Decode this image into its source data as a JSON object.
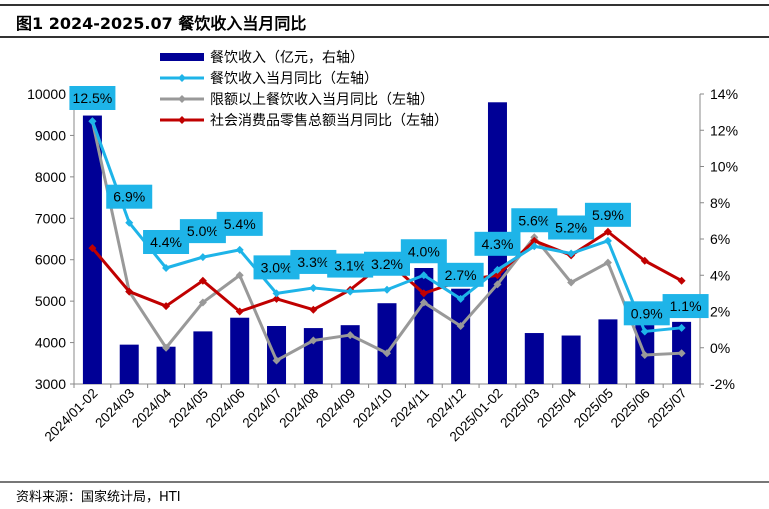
{
  "title": "图1  2024-2025.07 餐饮收入当月同比",
  "source": "资料来源：国家统计局，HTI",
  "colors": {
    "bar": "#000096",
    "catering_yoy": "#1EB4E8",
    "above_scale_yoy": "#999999",
    "retail_yoy": "#C00000",
    "label_bg": "#1EB4E8"
  },
  "chart_data": {
    "type": "bar+line",
    "title": "图1  2024-2025.07 餐饮收入当月同比",
    "categories": [
      "2024/01-02",
      "2024/03",
      "2024/04",
      "2024/05",
      "2024/06",
      "2024/07",
      "2024/08",
      "2024/09",
      "2024/10",
      "2024/11",
      "2024/12",
      "2025/01-02",
      "2025/03",
      "2025/04",
      "2025/05",
      "2025/06",
      "2025/07"
    ],
    "left_axis": {
      "min": 3000,
      "max": 10000,
      "ticks": [
        3000,
        4000,
        5000,
        6000,
        7000,
        8000,
        9000,
        10000
      ]
    },
    "right_axis": {
      "min": -2,
      "max": 14,
      "ticks": [
        "-2%",
        "0%",
        "2%",
        "4%",
        "6%",
        "8%",
        "10%",
        "12%",
        "14%"
      ]
    },
    "series": [
      {
        "name": "餐饮收入（亿元，右轴）",
        "type": "bar",
        "axis": "left",
        "values": [
          9480,
          3950,
          3900,
          4270,
          4600,
          4400,
          4350,
          4420,
          4950,
          5800,
          5300,
          9800,
          4230,
          4170,
          4560,
          4500,
          4500
        ]
      },
      {
        "name": "餐饮收入当月同比（左轴）",
        "type": "line",
        "axis": "right",
        "values": [
          12.5,
          6.9,
          4.4,
          5.0,
          5.4,
          3.0,
          3.3,
          3.1,
          3.2,
          4.0,
          2.7,
          4.3,
          5.6,
          5.2,
          5.9,
          0.9,
          1.1
        ],
        "labels": [
          "12.5%",
          "6.9%",
          "4.4%",
          "5.0%",
          "5.4%",
          "3.0%",
          "3.3%",
          "3.1%",
          "3.2%",
          "4.0%",
          "2.7%",
          "4.3%",
          "5.6%",
          "5.2%",
          "5.9%",
          "0.9%",
          "1.1%"
        ]
      },
      {
        "name": "限额以上餐饮收入当月同比（左轴）",
        "type": "line",
        "axis": "right",
        "values": [
          12.5,
          3.1,
          0.0,
          2.5,
          4.0,
          -0.7,
          0.4,
          0.7,
          -0.3,
          2.5,
          1.2,
          3.5,
          6.1,
          3.6,
          4.7,
          -0.4,
          -0.3
        ]
      },
      {
        "name": "社会消费品零售总额当月同比（左轴）",
        "type": "line",
        "axis": "right",
        "values": [
          5.5,
          3.1,
          2.3,
          3.7,
          2.0,
          2.7,
          2.1,
          3.2,
          4.8,
          3.0,
          3.7,
          4.0,
          5.9,
          5.1,
          6.4,
          4.8,
          3.7
        ]
      }
    ],
    "legend_position": "top-center",
    "grid": false
  }
}
